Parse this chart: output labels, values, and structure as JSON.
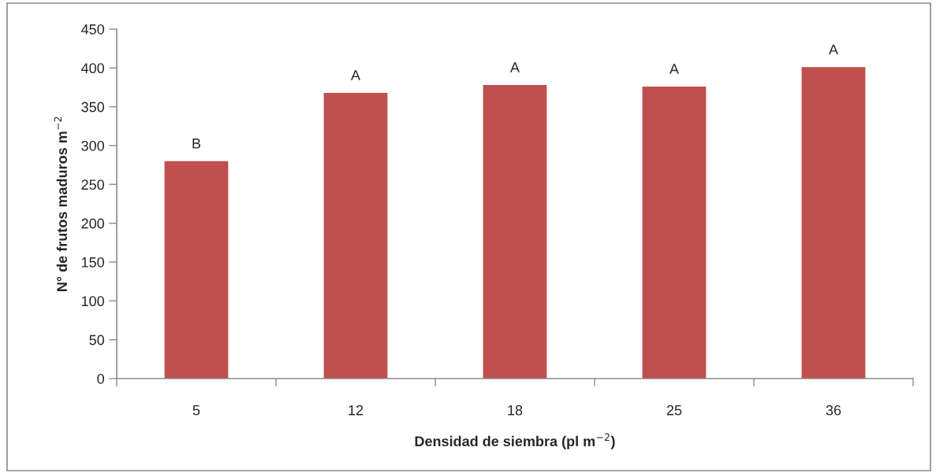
{
  "chart_data": {
    "type": "bar",
    "xlabel": "Densidad de siembra (pl m$^{−2}$)",
    "ylabel": "N° de frutos maduros m$^{−2}$",
    "categories": [
      "5",
      "12",
      "18",
      "25",
      "36"
    ],
    "values": [
      280,
      368,
      378,
      376,
      401
    ],
    "color": "#c0504d",
    "ylim": [
      0,
      450
    ],
    "yticks": [
      0,
      50,
      100,
      150,
      200,
      250,
      300,
      350,
      400,
      450
    ],
    "annotations": [
      {
        "text": "B",
        "x": "5",
        "y": 280
      },
      {
        "text": "A",
        "x": "12",
        "y": 368
      },
      {
        "text": "A",
        "x": "18",
        "y": 378
      },
      {
        "text": "A",
        "x": "25",
        "y": 376
      },
      {
        "text": "A",
        "x": "36",
        "y": 401
      }
    ]
  }
}
